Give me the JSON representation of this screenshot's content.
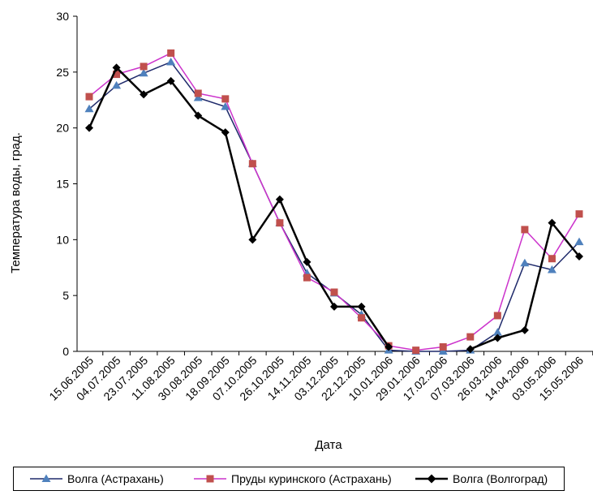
{
  "chart_data": {
    "type": "line",
    "title": "",
    "xlabel": "Дата",
    "ylabel": "Температура воды, град.",
    "ylim": [
      0,
      30
    ],
    "yticks": [
      0,
      5,
      10,
      15,
      20,
      25,
      30
    ],
    "grid": false,
    "legend_position": "bottom",
    "categories": [
      "15.06.2005",
      "04.07.2005",
      "23.07.2005",
      "11.08.2005",
      "30.08.2005",
      "18.09.2005",
      "07.10.2005",
      "26.10.2005",
      "14.11.2005",
      "03.12.2005",
      "22.12.2005",
      "10.01.2006",
      "29.01.2006",
      "17.02.2006",
      "07.03.2006",
      "26.03.2006",
      "14.04.2006",
      "03.05.2006",
      "15.05.2006"
    ],
    "series": [
      {
        "name": "Волга (Астрахань)",
        "color": "#4F81BD",
        "line_color": "#1F2A6B",
        "marker": "triangle",
        "values": [
          21.7,
          23.8,
          24.9,
          25.9,
          22.7,
          21.9,
          16.8,
          11.5,
          7.0,
          5.2,
          3.3,
          0.1,
          0.0,
          0.0,
          0.1,
          1.7,
          7.9,
          7.3,
          9.8
        ]
      },
      {
        "name": "Пруды куринского (Астрахань)",
        "color": "#C0504D",
        "line_color": "#CC33CC",
        "marker": "square",
        "values": [
          22.8,
          24.8,
          25.5,
          26.7,
          23.1,
          22.6,
          16.8,
          11.5,
          6.6,
          5.3,
          3.0,
          0.5,
          0.1,
          0.4,
          1.3,
          3.2,
          10.9,
          8.3,
          12.3
        ]
      },
      {
        "name": "Волга (Волгоград)",
        "color": "#000000",
        "line_color": "#000000",
        "marker": "diamond",
        "values": [
          20.0,
          25.4,
          23.0,
          24.2,
          21.1,
          19.6,
          10.0,
          13.6,
          8.0,
          4.0,
          4.0,
          0.4,
          null,
          null,
          0.2,
          1.2,
          1.9,
          11.5,
          8.5
        ]
      }
    ]
  }
}
